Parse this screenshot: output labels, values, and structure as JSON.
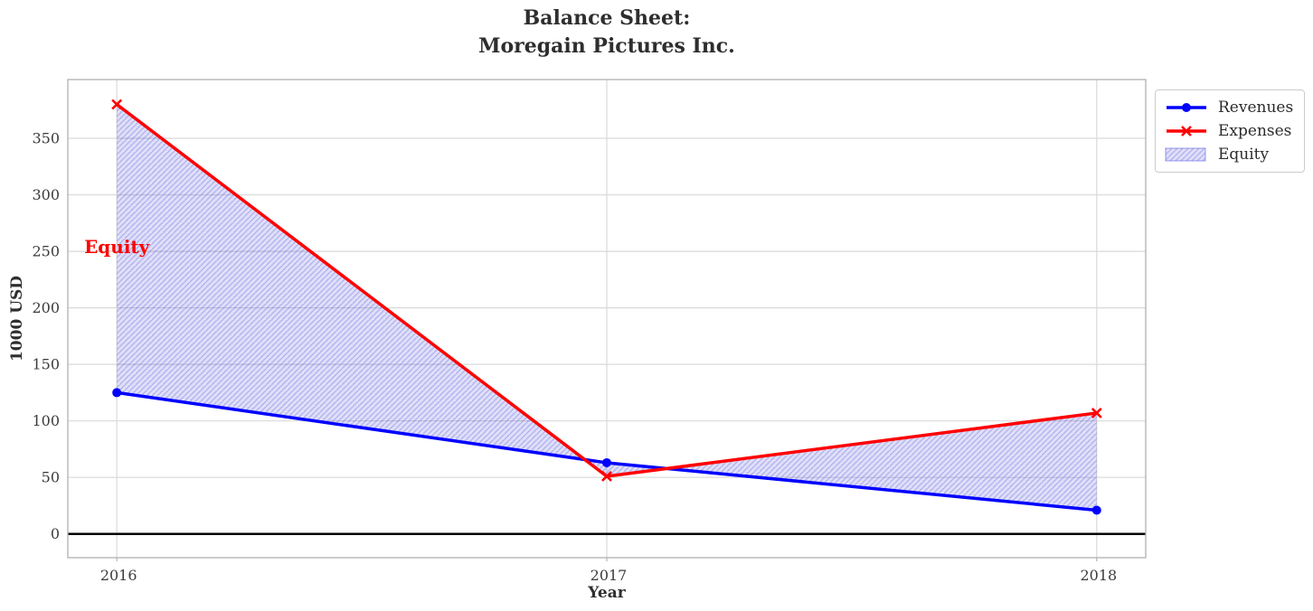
{
  "chart_data": {
    "type": "line",
    "title": "Balance Sheet: Moregain Pictures Inc.",
    "title_lines": [
      "Balance Sheet:",
      "Moregain Pictures Inc."
    ],
    "xlabel": "Year",
    "ylabel": "1000 USD",
    "x": [
      2016,
      2017,
      2018
    ],
    "x_tick_labels": [
      "2016",
      "2017",
      "2018"
    ],
    "y_ticks": [
      0,
      50,
      100,
      150,
      200,
      250,
      300,
      350
    ],
    "xlim": [
      2015.9,
      2018.1
    ],
    "ylim": [
      -21,
      402
    ],
    "grid": true,
    "series": [
      {
        "name": "Revenues",
        "color": "#0000ff",
        "marker": "circle",
        "values": [
          125,
          63,
          21
        ]
      },
      {
        "name": "Expenses",
        "color": "#ff0000",
        "marker": "x",
        "values": [
          380,
          51,
          107
        ]
      }
    ],
    "fill_between": {
      "label": "Equity",
      "between": [
        "Revenues",
        "Expenses"
      ],
      "fill_color": "#2020dd",
      "fill_opacity": 0.14,
      "hatch": "//",
      "hatch_color": "rgba(64,64,200,0.28)"
    },
    "zero_line": {
      "y": 0,
      "color": "#000000",
      "width": 2.5
    },
    "annotations": [
      {
        "text": "Equity",
        "x": 2016,
        "y": 253,
        "color": "#ff0000",
        "weight": "bold"
      }
    ],
    "legend": {
      "position": "upper right, outside plot",
      "entries": [
        "Revenues",
        "Expenses",
        "Equity"
      ]
    },
    "axes_style": {
      "grid_color": "#d9d9d9",
      "spine_color": "#b0b0b0",
      "tick_color": "#3c3c3c",
      "text_color": "#2e2e2e"
    }
  }
}
